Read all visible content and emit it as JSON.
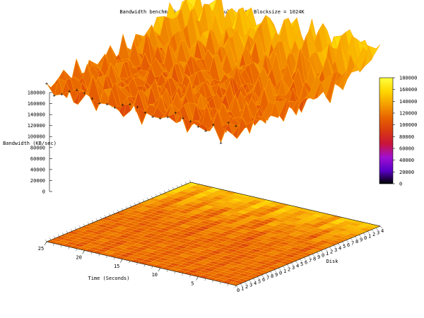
{
  "chart_data": {
    "type": "surface3d",
    "title": "Bandwidth benchmark with 35 fio results with Blocksize = 1024K",
    "zlabel": "Bandwidth (KB/sec)",
    "xlabel": "Time (Seconds)",
    "ylabel": "Disk",
    "z_ticks": [
      "180000",
      "160000",
      "140000",
      "120000",
      "100000",
      "80000",
      "60000",
      "40000",
      "20000",
      "0"
    ],
    "zlim": [
      0,
      180000
    ],
    "time_ticks": [
      "25",
      "20",
      "15",
      "10",
      "5"
    ],
    "time_range": [
      0,
      25
    ],
    "disk_range": [
      0,
      34
    ],
    "colorbar": {
      "ticks": [
        "180000",
        "160000",
        "140000",
        "120000",
        "100000",
        "80000",
        "60000",
        "40000",
        "20000",
        "0"
      ],
      "range": [
        0,
        180000
      ],
      "palette": [
        "#000000",
        "#5a00c8",
        "#a010d0",
        "#c8143c",
        "#d83a10",
        "#e86400",
        "#f5a000",
        "#ffd800",
        "#ffff40"
      ]
    },
    "series": [
      {
        "disk": 0,
        "values": [
          112000,
          106000,
          98000,
          121000,
          95000,
          118000,
          104000,
          92000,
          126000,
          110000,
          99000,
          123000,
          108000,
          96000,
          119000,
          105000,
          94000,
          127000,
          111000,
          100000,
          124000,
          109000,
          97000,
          120000,
          106000,
          115000
        ]
      },
      {
        "disk": 5,
        "values": [
          118000,
          104000,
          124000,
          97000,
          130000,
          108000,
          99000,
          122000,
          113000,
          94000,
          128000,
          105000,
          117000,
          98000,
          125000,
          110000,
          101000,
          129000,
          107000,
          96000,
          121000,
          112000,
          103000,
          126000,
          100000,
          119000
        ]
      },
      {
        "disk": 10,
        "values": [
          122000,
          110000,
          96000,
          128000,
          104000,
          117000,
          92000,
          125000,
          108000,
          99000,
          131000,
          106000,
          114000,
          95000,
          127000,
          103000,
          118000,
          97000,
          124000,
          109000,
          100000,
          129000,
          111000,
          98000,
          123000,
          116000
        ]
      },
      {
        "disk": 15,
        "values": [
          128000,
          97000,
          119000,
          106000,
          132000,
          95000,
          121000,
          110000,
          88000,
          126000,
          104000,
          117000,
          99000,
          130000,
          108000,
          93000,
          124000,
          113000,
          101000,
          127000,
          96000,
          118000,
          107000,
          122000,
          102000,
          125000
        ]
      },
      {
        "disk": 20,
        "values": [
          134000,
          112000,
          90000,
          138000,
          104000,
          126000,
          96000,
          140000,
          110000,
          85000,
          136000,
          118000,
          100000,
          142000,
          108000,
          94000,
          133000,
          115000,
          98000,
          139000,
          106000,
          121000,
          92000,
          137000,
          113000,
          130000
        ]
      },
      {
        "disk": 25,
        "values": [
          142000,
          98000,
          150000,
          120000,
          86000,
          155000,
          108000,
          138000,
          94000,
          160000,
          116000,
          80000,
          152000,
          124000,
          102000,
          158000,
          112000,
          90000,
          148000,
          130000,
          96000,
          156000,
          118000,
          104000,
          145000,
          135000
        ]
      },
      {
        "disk": 30,
        "values": [
          150000,
          124000,
          165000,
          110000,
          158000,
          138000,
          100000,
          170000,
          128000,
          146000,
          112000,
          175000,
          132000,
          98000,
          162000,
          140000,
          118000,
          168000,
          126000,
          152000,
          106000,
          172000,
          136000,
          114000,
          160000,
          155000
        ]
      },
      {
        "disk": 34,
        "values": [
          156000,
          140000,
          168000,
          128000,
          172000,
          150000,
          122000,
          176000,
          136000,
          160000,
          118000,
          178000,
          144000,
          130000,
          170000,
          154000,
          126000,
          174000,
          142000,
          164000,
          120000,
          177000,
          148000,
          132000,
          166000,
          162000
        ]
      }
    ]
  }
}
